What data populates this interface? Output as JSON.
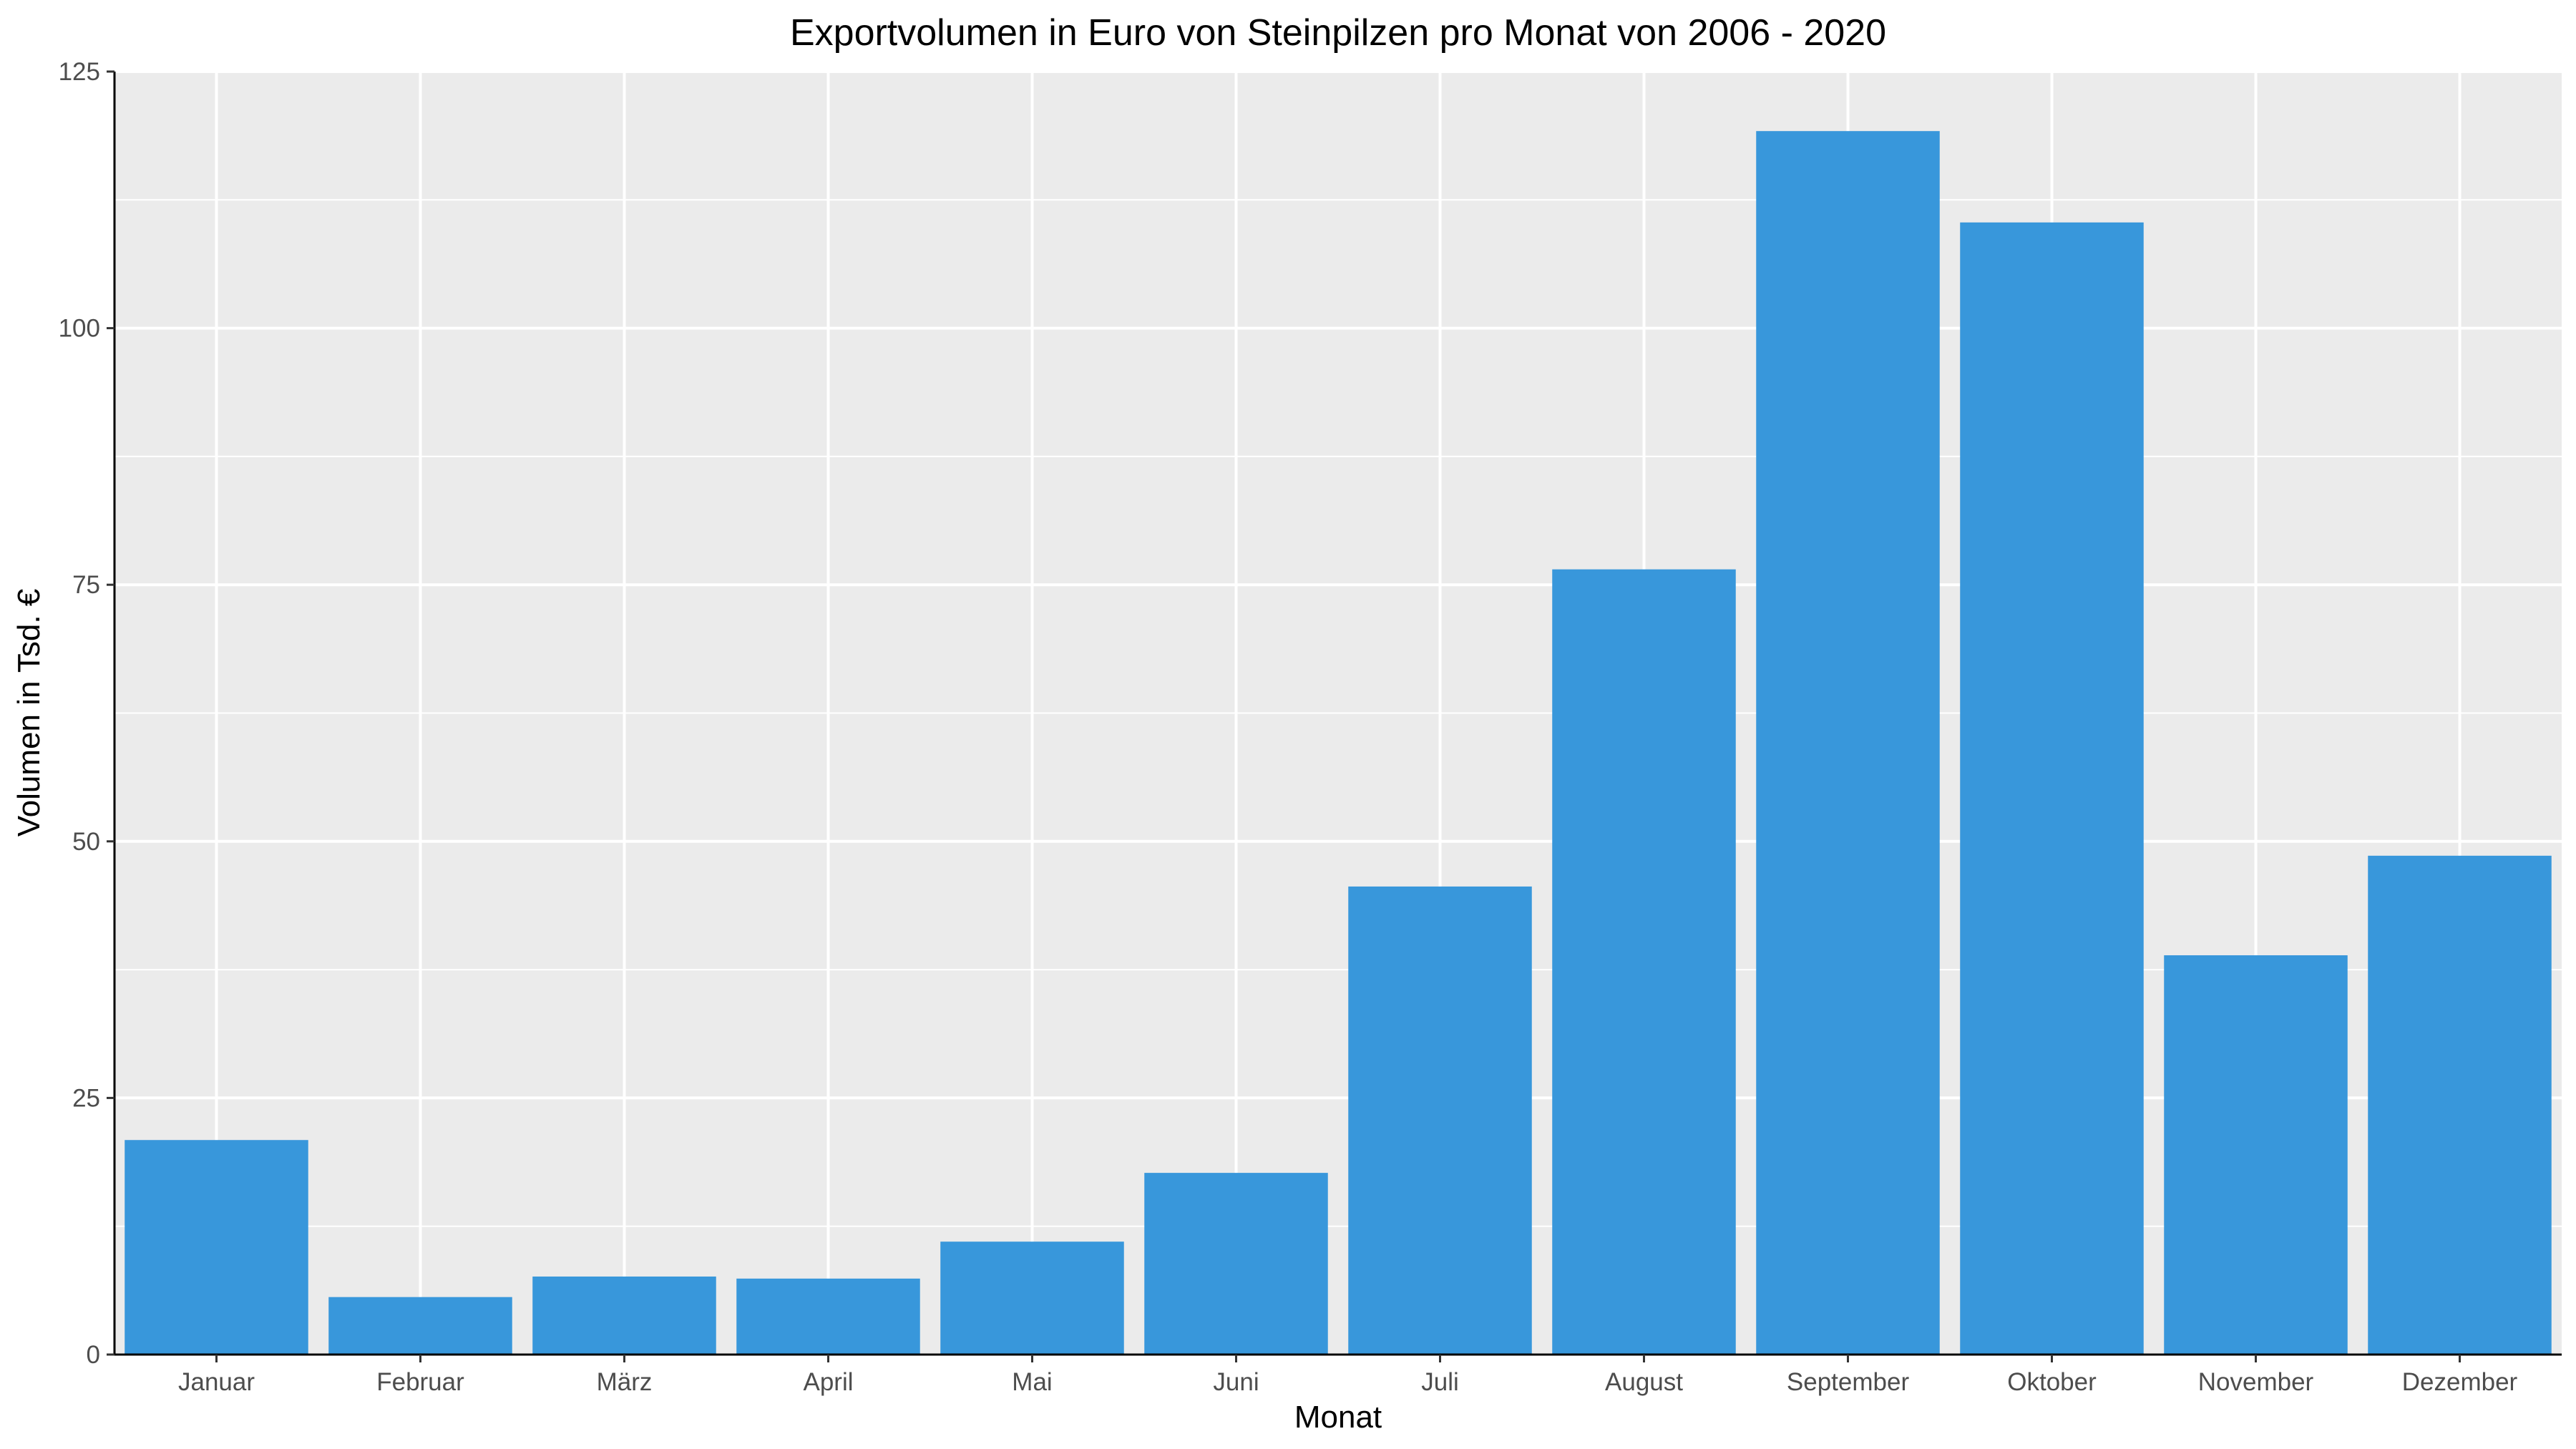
{
  "chart_data": {
    "type": "bar",
    "title": "Exportvolumen in Euro von Steinpilzen pro Monat von 2006 - 2020",
    "xlabel": "Monat",
    "ylabel": "Volumen in Tsd. €",
    "categories": [
      "Januar",
      "Februar",
      "März",
      "April",
      "Mai",
      "Juni",
      "Juli",
      "August",
      "September",
      "Oktober",
      "November",
      "Dezember"
    ],
    "values": [
      20.9,
      5.6,
      7.6,
      7.4,
      11.0,
      17.7,
      45.6,
      76.5,
      119.2,
      110.3,
      38.9,
      48.6
    ],
    "ylim": [
      0,
      125
    ],
    "yticks": [
      0,
      25,
      50,
      75,
      100,
      125
    ],
    "ytick_labels": [
      "0",
      "25",
      "50",
      "75",
      "100",
      "125"
    ],
    "grid": true,
    "legend": "none",
    "colors": {
      "bar": "#3897db",
      "panel_background": "#ebebeb",
      "grid": "#ffffff",
      "axis": "#000000"
    }
  }
}
